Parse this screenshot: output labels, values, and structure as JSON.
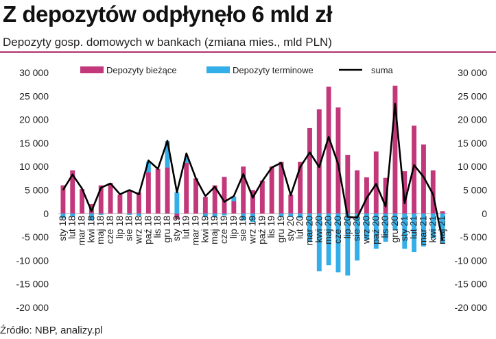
{
  "header": {
    "title": "Z depozytów odpłynęło 6 mld zł",
    "subtitle": "Depozyty gosp. domowych w bankach (zmiana mies., mld PLN)"
  },
  "footer": {
    "source": "Źródło: NBP, analizy.pl"
  },
  "colors": {
    "current": "#c2387a",
    "term": "#33aee8",
    "sum": "#000000",
    "rule": "#b0306e"
  },
  "chart_data": {
    "type": "bar",
    "title": "Depozyty gosp. domowych w bankach (zmiana mies., mld PLN)",
    "xlabel": "",
    "ylabel": "",
    "ylim": [
      -20000,
      30000
    ],
    "y_ticks": [
      30000,
      25000,
      20000,
      15000,
      10000,
      5000,
      0,
      -5000,
      -10000,
      -15000,
      -20000
    ],
    "y_tick_labels": [
      "30 000",
      "25 000",
      "20 000",
      "15 000",
      "10 000",
      "5 000",
      "0",
      "-5 000",
      "-10 000",
      "-15 000",
      "-20 000"
    ],
    "legend": [
      "Depozyty bieżące",
      "Depozyty terminowe",
      "suma"
    ],
    "legend_position": "top",
    "categories": [
      "sty 18",
      "lut 18",
      "mar 18",
      "kwi 18",
      "maj 18",
      "cze 18",
      "lip 18",
      "sie 18",
      "wrz 18",
      "paź 18",
      "lis 18",
      "gru 18",
      "sty 19",
      "lut 19",
      "mar 19",
      "kwi 19",
      "maj 19",
      "cze 19",
      "lip 19",
      "sie 19",
      "wrz 19",
      "paź 19",
      "lis 19",
      "gru 19",
      "sty 20",
      "lut 20",
      "mar 20",
      "kwi 20",
      "maj 20",
      "cze 20",
      "lip 20",
      "sie 20",
      "wrz 20",
      "paź 20",
      "lis 20",
      "gru 20",
      "sty 21",
      "lut 21",
      "mar 21",
      "kwi 21",
      "maj 21"
    ],
    "category_labels_shown": [
      "sty 18",
      "lut 18",
      "mar 18",
      "kwi 18",
      "maj 18",
      "cze 18",
      "lip 18",
      "sie 18",
      "wrz 18",
      "paź 18",
      "lis 18",
      "gru 18",
      "sty 19",
      "lut 19",
      "mar 19",
      "kwi 19",
      "maj 19",
      "cze 19",
      "lip 19",
      "sie 19",
      "wrz 19",
      "paź 19",
      "lis 19",
      "gru 19",
      "sty 20",
      "lut 20",
      "mar 20",
      "kwi 20",
      "maj 20",
      "cze 20",
      "lip 20",
      "sie 20",
      "wrz 20",
      "paź 20",
      "lis 20",
      "gru 20",
      "sty 21",
      "lut 21",
      "mar 21",
      "kwi 21",
      "maj 21"
    ],
    "series": [
      {
        "name": "Depozyty bieżące",
        "kind": "bar",
        "values": [
          6000,
          9200,
          5200,
          2000,
          6000,
          6500,
          4000,
          5000,
          4500,
          8800,
          9500,
          9800,
          -1200,
          10800,
          7500,
          3500,
          6000,
          7800,
          2600,
          10000,
          5000,
          7000,
          10000,
          11000,
          4000,
          11000,
          18200,
          22200,
          27000,
          22600,
          12500,
          9200,
          7700,
          13200,
          7600,
          27200,
          9000,
          18700,
          14700,
          9200,
          500
        ]
      },
      {
        "name": "Depozyty terminowe",
        "kind": "bar",
        "values": [
          -1000,
          -700,
          0,
          -1500,
          -300,
          0,
          0,
          -300,
          -500,
          2200,
          0,
          5600,
          4500,
          1000,
          0,
          -700,
          -800,
          -400,
          1000,
          -1500,
          -1800,
          0,
          0,
          -700,
          -600,
          -1000,
          -6000,
          -12300,
          -11000,
          -12500,
          -13200,
          -10000,
          -5500,
          -7500,
          -6000,
          -3500,
          -7500,
          -8200,
          -7000,
          -5300,
          -6400
        ]
      },
      {
        "name": "suma",
        "kind": "line",
        "values": [
          5000,
          8300,
          5300,
          500,
          5500,
          6400,
          4100,
          5000,
          4100,
          11300,
          9500,
          15500,
          4500,
          12800,
          7500,
          3700,
          5700,
          2500,
          3700,
          8400,
          3400,
          6900,
          9800,
          10800,
          3900,
          9900,
          13000,
          9900,
          16300,
          10500,
          -700,
          -900,
          3300,
          6300,
          1500,
          23400,
          2200,
          10300,
          7800,
          4100,
          -5800
        ]
      }
    ]
  }
}
